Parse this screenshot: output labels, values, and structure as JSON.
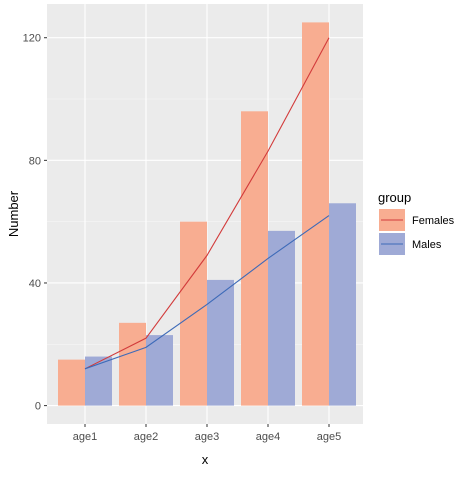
{
  "chart_data": {
    "type": "bar",
    "xlabel": "x",
    "ylabel": "Number",
    "categories": [
      "age1",
      "age2",
      "age3",
      "age4",
      "age5"
    ],
    "ylim": [
      -6,
      131
    ],
    "y_ticks": [
      0,
      40,
      80,
      120
    ],
    "grid": true,
    "legend": {
      "title": "group",
      "position": "right"
    },
    "series": [
      {
        "name": "Females",
        "values": [
          15,
          27,
          60,
          96,
          125
        ],
        "bar_color": "#F8AD91",
        "line_color": "#D23B3B"
      },
      {
        "name": "Males",
        "values": [
          16,
          23,
          41,
          57,
          66
        ],
        "bar_color": "#9FAAD6",
        "line_color": "#3D6AB8"
      }
    ],
    "lines": [
      {
        "name": "Females",
        "values": [
          12,
          22,
          49,
          83,
          120
        ]
      },
      {
        "name": "Males",
        "values": [
          12,
          19,
          33,
          48,
          62
        ]
      }
    ]
  }
}
